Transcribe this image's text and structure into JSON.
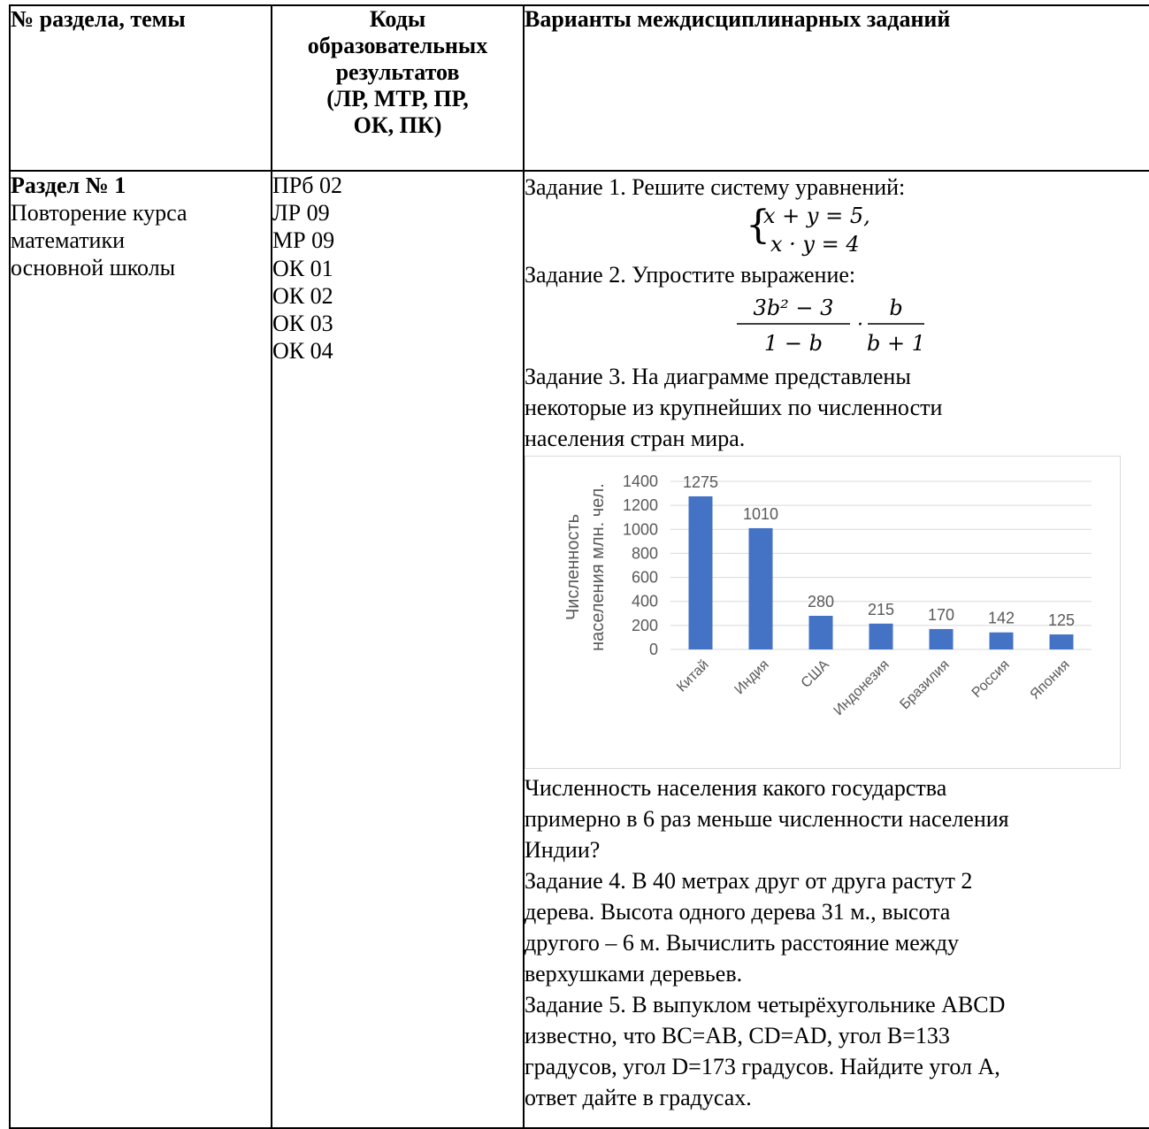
{
  "headers": {
    "col1": "№ раздела, темы",
    "col2_lines": [
      "Коды",
      "образовательных",
      "результатов",
      "(ЛР, МТР, ПР,",
      "ОК, ПК)"
    ],
    "col3": "Варианты междисциплинарных заданий"
  },
  "section": {
    "title": "Раздел № 1",
    "topic_lines": [
      "Повторение курса",
      "математики",
      "основной школы"
    ]
  },
  "codes": [
    "ПРб 02",
    "ЛР 09",
    "МР 09",
    "ОК 01",
    "ОК 02",
    "ОК 03",
    "ОК 04"
  ],
  "tasks": {
    "task1_text": "Задание 1. Решите систему уравнений:",
    "task1_eq1": "x + y = 5,",
    "task1_eq2": "x · y = 4",
    "task2_text": "Задание 2. Упростите выражение:",
    "task2_num": "3b² − 3",
    "task2_den": "1 − b",
    "task2_num2": "b",
    "task2_den2": "b + 1",
    "task3_lines": [
      "Задание 3. На диаграмме представлены",
      "некоторые из крупнейших по численности",
      "населения стран мира."
    ],
    "question_lines": [
      "Численность населения какого государства",
      "примерно в 6 раз меньше численности населения",
      "Индии?"
    ],
    "task4_lines": [
      "Задание 4. В 40 метрах друг от друга растут 2",
      "дерева. Высота одного дерева 31 м., высота",
      "другого – 6 м. Вычислить расстояние между",
      "верхушками деревьев."
    ],
    "task5_lines": [
      "Задание 5. В выпуклом четырёхугольнике ABCD",
      "известно, что BC=AB, CD=AD, угол B=133",
      "градусов, угол D=173 градусов. Найдите угол A,",
      "ответ дайте в градусах."
    ]
  },
  "chart_data": {
    "type": "bar",
    "categories": [
      "Китай",
      "Индия",
      "США",
      "Индонезия",
      "Бразилия",
      "Россия",
      "Япония"
    ],
    "values": [
      1275,
      1010,
      280,
      215,
      170,
      142,
      125
    ],
    "title": "",
    "xlabel": "",
    "ylabel_lines": [
      "Численность",
      "населения млн. чел."
    ],
    "ylim": [
      0,
      1400
    ],
    "yticks": [
      0,
      200,
      400,
      600,
      800,
      1000,
      1200,
      1400
    ],
    "grid": true,
    "data_labels": true,
    "bar_color": "#4472c4",
    "grid_color": "#d9d9d9",
    "label_color": "#595959"
  }
}
